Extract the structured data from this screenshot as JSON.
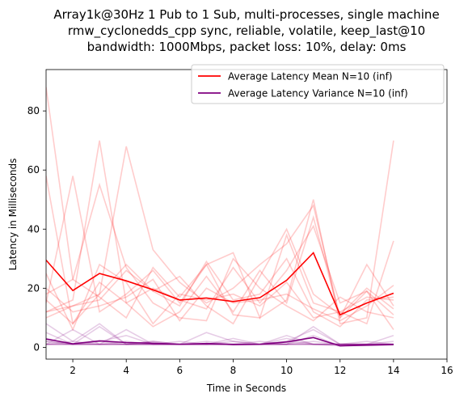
{
  "chart_data": {
    "type": "line",
    "title_lines": [
      "Array1k@30Hz 1 Pub to 1 Sub, multi-processes, single machine",
      "rmw_cyclonedds_cpp sync, reliable, volatile, keep_last@10",
      "bandwidth: 1000Mbps, packet loss: 10%, delay: 0ms"
    ],
    "xlabel": "Time in Seconds",
    "ylabel": "Latency in Milliseconds",
    "xlim": [
      1,
      16
    ],
    "ylim": [
      -4,
      94
    ],
    "xticks": [
      2,
      4,
      6,
      8,
      10,
      12,
      14,
      16
    ],
    "yticks": [
      0,
      20,
      40,
      60,
      80
    ],
    "grid": false,
    "legend_position": "top-right",
    "colors": {
      "mean": "#ff0000",
      "variance": "#800080",
      "mean_runs": "#ff0000",
      "variance_runs": "#800080"
    },
    "x": [
      1,
      2,
      3,
      4,
      5,
      6,
      7,
      8,
      9,
      10,
      11,
      12,
      13,
      14
    ],
    "series": [
      {
        "name": "Average Latency Mean N=10 (inf)",
        "role": "mean",
        "values": [
          29.5,
          19.2,
          25,
          22.5,
          19.5,
          16,
          16.7,
          15.5,
          16.8,
          22.7,
          32,
          11,
          15,
          18.3
        ]
      },
      {
        "name": "Average Latency Variance N=10 (inf)",
        "role": "variance",
        "values": [
          2.8,
          1.2,
          2.2,
          1.6,
          1.4,
          1.0,
          1.3,
          0.9,
          1.0,
          1.8,
          3.3,
          0.5,
          0.7,
          0.9
        ]
      }
    ],
    "mean_runs": [
      [
        88,
        23,
        17,
        10,
        27,
        17,
        28,
        11,
        10,
        16,
        50,
        8,
        10,
        70
      ],
      [
        58,
        8,
        18,
        68,
        33,
        22,
        15,
        20,
        28,
        35,
        48,
        10,
        19,
        6
      ],
      [
        15,
        58,
        12,
        18,
        26,
        15,
        28,
        32,
        10,
        38,
        15,
        12,
        17,
        16
      ],
      [
        12,
        16,
        70,
        15,
        7,
        12,
        24,
        12,
        26,
        15,
        44,
        10,
        28,
        14
      ],
      [
        18,
        23,
        55,
        27,
        15,
        10,
        9,
        30,
        20,
        14,
        9,
        17,
        12,
        10
      ],
      [
        25,
        6,
        28,
        22,
        8,
        18,
        16,
        18,
        14,
        22,
        10,
        12,
        8,
        36
      ],
      [
        10,
        14,
        18,
        28,
        19,
        24,
        14,
        8,
        24,
        40,
        18,
        11,
        20,
        13
      ],
      [
        20,
        12,
        14,
        17,
        23,
        9,
        20,
        15,
        16,
        18,
        13,
        9,
        14,
        21
      ],
      [
        12,
        14,
        16,
        26,
        19,
        14,
        29,
        16,
        18,
        30,
        12,
        7,
        16,
        17
      ],
      [
        16,
        8,
        22,
        15,
        20,
        16,
        13,
        27,
        15,
        26,
        41,
        15,
        19,
        11
      ]
    ],
    "variance_runs": [
      [
        8,
        2,
        8,
        1,
        2,
        1,
        1,
        1,
        1,
        1,
        7,
        1,
        1,
        1
      ],
      [
        3,
        1,
        2,
        4,
        1,
        1,
        5,
        2,
        1,
        3,
        1,
        1,
        2,
        1
      ],
      [
        1,
        6,
        1,
        1,
        1,
        1,
        1,
        1,
        1,
        2,
        1,
        1,
        1,
        4
      ],
      [
        2,
        1,
        7,
        1,
        1,
        1,
        1,
        1,
        1,
        1,
        4,
        0.5,
        1,
        1
      ],
      [
        1,
        1,
        1,
        6,
        1,
        1,
        1,
        3,
        1,
        1,
        1,
        1,
        1,
        1
      ],
      [
        5,
        1,
        1,
        1,
        1,
        2,
        1,
        1,
        2,
        1,
        1,
        0.5,
        1,
        2
      ],
      [
        1,
        2,
        1,
        1,
        2,
        1,
        2,
        1,
        1,
        4,
        1,
        1,
        1,
        1
      ],
      [
        2,
        1,
        1,
        2,
        1,
        1,
        1,
        1,
        1,
        1,
        2,
        1,
        1,
        1
      ],
      [
        1,
        1,
        2,
        1,
        1,
        1,
        1,
        2,
        1,
        1,
        1,
        1,
        1,
        1
      ],
      [
        1,
        1,
        1,
        1,
        1,
        1,
        1,
        1,
        1,
        2,
        6,
        1,
        1,
        1
      ]
    ]
  }
}
